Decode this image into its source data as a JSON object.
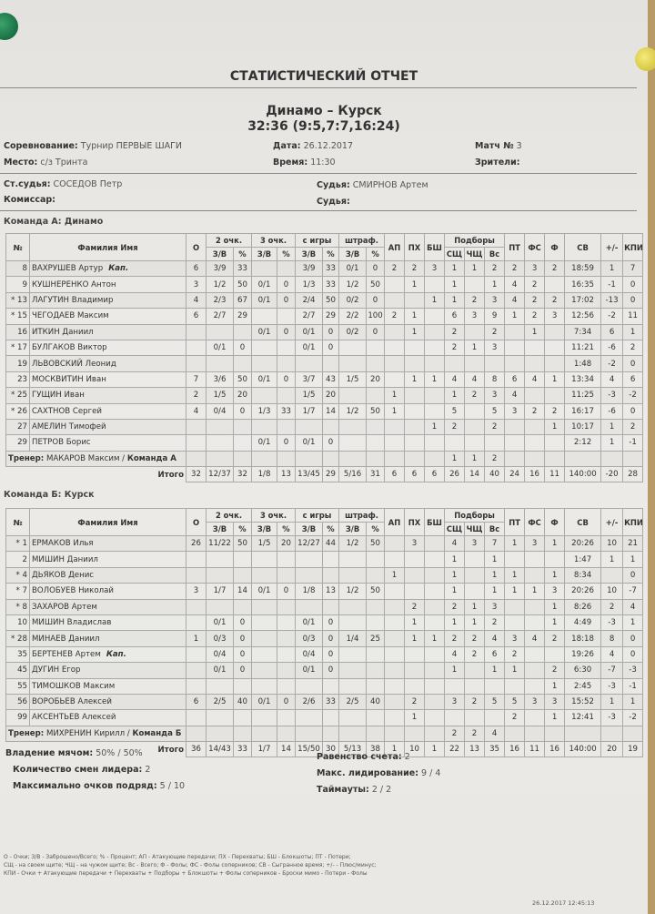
{
  "title": "СТАТИСТИЧЕСКИЙ ОТЧЕТ",
  "match": {
    "teams": "Динамо  – Курск",
    "score": "32:36 (9:5,7:7,16:24)"
  },
  "meta": {
    "competition_label": "Соревнование:",
    "competition": "Турнир ПЕРВЫЕ ШАГИ",
    "date_label": "Дата:",
    "date": "26.12.2017",
    "match_no_label": "Матч №",
    "match_no": "3",
    "place_label": "Место:",
    "place": "с/з Тринта",
    "time_label": "Время:",
    "time": "11:30",
    "spectators_label": "Зрители:",
    "chief_ref_label": "Ст.судья:",
    "chief_ref": "СОСЕДОВ Петр",
    "ref1_label": "Судья:",
    "ref1": "СМИРНОВ Артем",
    "commissioner_label": "Комиссар:",
    "ref2_label": "Судья:"
  },
  "headers": {
    "num": "№",
    "name": "Фамилия Имя",
    "pts": "О",
    "two": "2 очк.",
    "three": "3 очк.",
    "field": "с игры",
    "ft": "штраф.",
    "zv": "З/В",
    "pct": "%",
    "ap": "АП",
    "ph": "ПХ",
    "bsh": "БШ",
    "reb": "Подборы",
    "ssh": "СЩ",
    "chsh": "ЧЩ",
    "vs": "Вс",
    "pt": "ПТ",
    "fs": "ФС",
    "f": "Ф",
    "sv": "СВ",
    "pm": "+/-",
    "kpi": "КПИ",
    "total": "Итого",
    "captain": "Кап.",
    "coach": "Тренер:"
  },
  "teams": [
    {
      "label": "Команда А: Динамо",
      "players": [
        {
          "num": "8",
          "name": "ВАХРУШЕВ Артур",
          "cap": true,
          "s": [
            "6",
            "3/9",
            "33",
            "",
            "",
            "3/9",
            "33",
            "0/1",
            "0",
            "2",
            "2",
            "3",
            "1",
            "1",
            "2",
            "2",
            "3",
            "2",
            "18:59",
            "1",
            "7"
          ]
        },
        {
          "num": "9",
          "name": "КУШНЕРЕНКО Антон",
          "s": [
            "3",
            "1/2",
            "50",
            "0/1",
            "0",
            "1/3",
            "33",
            "1/2",
            "50",
            "",
            "1",
            "",
            "1",
            "",
            "1",
            "4",
            "2",
            "",
            "16:35",
            "-1",
            "0"
          ]
        },
        {
          "num": "* 13",
          "name": "ЛАГУТИН Владимир",
          "s": [
            "4",
            "2/3",
            "67",
            "0/1",
            "0",
            "2/4",
            "50",
            "0/2",
            "0",
            "",
            "",
            "1",
            "1",
            "2",
            "3",
            "4",
            "2",
            "2",
            "17:02",
            "-13",
            "0"
          ]
        },
        {
          "num": "* 15",
          "name": "ЧЕГОДАЕВ Максим",
          "s": [
            "6",
            "2/7",
            "29",
            "",
            "",
            "2/7",
            "29",
            "2/2",
            "100",
            "2",
            "1",
            "",
            "6",
            "3",
            "9",
            "1",
            "2",
            "3",
            "12:56",
            "-2",
            "11"
          ]
        },
        {
          "num": "16",
          "name": "ИТКИН Даниил",
          "s": [
            "",
            "",
            "",
            "0/1",
            "0",
            "0/1",
            "0",
            "0/2",
            "0",
            "",
            "1",
            "",
            "2",
            "",
            "2",
            "",
            "1",
            "",
            "7:34",
            "6",
            "1"
          ]
        },
        {
          "num": "* 17",
          "name": "БУЛГАКОВ Виктор",
          "s": [
            "",
            "0/1",
            "0",
            "",
            "",
            "0/1",
            "0",
            "",
            "",
            "",
            "",
            "",
            "2",
            "1",
            "3",
            "",
            "",
            "",
            "11:21",
            "-6",
            "2"
          ]
        },
        {
          "num": "19",
          "name": "ЛЬВОВСКИЙ Леонид",
          "s": [
            "",
            "",
            "",
            "",
            "",
            "",
            "",
            "",
            "",
            "",
            "",
            "",
            "",
            "",
            "",
            "",
            "",
            "",
            "1:48",
            "-2",
            "0"
          ]
        },
        {
          "num": "23",
          "name": "МОСКВИТИН Иван",
          "s": [
            "7",
            "3/6",
            "50",
            "0/1",
            "0",
            "3/7",
            "43",
            "1/5",
            "20",
            "",
            "1",
            "1",
            "4",
            "4",
            "8",
            "6",
            "4",
            "1",
            "13:34",
            "4",
            "6"
          ]
        },
        {
          "num": "* 25",
          "name": "ГУЩИН Иван",
          "s": [
            "2",
            "1/5",
            "20",
            "",
            "",
            "1/5",
            "20",
            "",
            "",
            "1",
            "",
            "",
            "1",
            "2",
            "3",
            "4",
            "",
            "",
            "11:25",
            "-3",
            "-2"
          ]
        },
        {
          "num": "* 26",
          "name": "САХТНОВ Сергей",
          "s": [
            "4",
            "0/4",
            "0",
            "1/3",
            "33",
            "1/7",
            "14",
            "1/2",
            "50",
            "1",
            "",
            "",
            "5",
            "",
            "5",
            "3",
            "2",
            "2",
            "16:17",
            "-6",
            "0"
          ]
        },
        {
          "num": "27",
          "name": "АМЕЛИН Тимофей",
          "s": [
            "",
            "",
            "",
            "",
            "",
            "",
            "",
            "",
            "",
            "",
            "",
            "1",
            "2",
            "",
            "2",
            "",
            "",
            "1",
            "10:17",
            "1",
            "2"
          ]
        },
        {
          "num": "29",
          "name": "ПЕТРОВ Борис",
          "s": [
            "",
            "",
            "",
            "0/1",
            "0",
            "0/1",
            "0",
            "",
            "",
            "",
            "",
            "",
            "",
            "",
            "",
            "",
            "",
            "",
            "2:12",
            "1",
            "-1"
          ]
        }
      ],
      "coach": "МАКАРОВ Максим",
      "coach_team": "Команда А",
      "team_reb": [
        "1",
        "1",
        "2"
      ],
      "total": [
        "32",
        "12/37",
        "32",
        "1/8",
        "13",
        "13/45",
        "29",
        "5/16",
        "31",
        "6",
        "6",
        "6",
        "26",
        "14",
        "40",
        "24",
        "16",
        "11",
        "140:00",
        "-20",
        "28"
      ]
    },
    {
      "label": "Команда Б: Курск",
      "players": [
        {
          "num": "* 1",
          "name": "ЕРМАКОВ Илья",
          "s": [
            "26",
            "11/22",
            "50",
            "1/5",
            "20",
            "12/27",
            "44",
            "1/2",
            "50",
            "",
            "3",
            "",
            "4",
            "3",
            "7",
            "1",
            "3",
            "1",
            "20:26",
            "10",
            "21"
          ]
        },
        {
          "num": "2",
          "name": "МИШИН Даниил",
          "s": [
            "",
            "",
            "",
            "",
            "",
            "",
            "",
            "",
            "",
            "",
            "",
            "",
            "1",
            "",
            "1",
            "",
            "",
            "",
            "1:47",
            "1",
            "1"
          ]
        },
        {
          "num": "* 4",
          "name": "ДЬЯКОВ Денис",
          "s": [
            "",
            "",
            "",
            "",
            "",
            "",
            "",
            "",
            "",
            "1",
            "",
            "",
            "1",
            "",
            "1",
            "1",
            "",
            "1",
            "8:34",
            "",
            "0"
          ]
        },
        {
          "num": "* 7",
          "name": "ВОЛОБУЕВ Николай",
          "s": [
            "3",
            "1/7",
            "14",
            "0/1",
            "0",
            "1/8",
            "13",
            "1/2",
            "50",
            "",
            "",
            "",
            "1",
            "",
            "1",
            "1",
            "1",
            "3",
            "20:26",
            "10",
            "-7"
          ]
        },
        {
          "num": "* 8",
          "name": "ЗАХАРОВ Артем",
          "s": [
            "",
            "",
            "",
            "",
            "",
            "",
            "",
            "",
            "",
            "",
            "2",
            "",
            "2",
            "1",
            "3",
            "",
            "",
            "1",
            "8:26",
            "2",
            "4"
          ]
        },
        {
          "num": "10",
          "name": "МИШИН Владислав",
          "s": [
            "",
            "0/1",
            "0",
            "",
            "",
            "0/1",
            "0",
            "",
            "",
            "",
            "1",
            "",
            "1",
            "1",
            "2",
            "",
            "",
            "1",
            "4:49",
            "-3",
            "1"
          ]
        },
        {
          "num": "* 28",
          "name": "МИНАЕВ Даниил",
          "s": [
            "1",
            "0/3",
            "0",
            "",
            "",
            "0/3",
            "0",
            "1/4",
            "25",
            "",
            "1",
            "1",
            "2",
            "2",
            "4",
            "3",
            "4",
            "2",
            "18:18",
            "8",
            "0"
          ]
        },
        {
          "num": "35",
          "name": "БЕРТЕНЕВ Артем",
          "cap": true,
          "s": [
            "",
            "0/4",
            "0",
            "",
            "",
            "0/4",
            "0",
            "",
            "",
            "",
            "",
            "",
            "4",
            "2",
            "6",
            "2",
            "",
            "",
            "19:26",
            "4",
            "0"
          ]
        },
        {
          "num": "45",
          "name": "ДУГИН Егор",
          "s": [
            "",
            "0/1",
            "0",
            "",
            "",
            "0/1",
            "0",
            "",
            "",
            "",
            "",
            "",
            "1",
            "",
            "1",
            "1",
            "",
            "2",
            "6:30",
            "-7",
            "-3"
          ]
        },
        {
          "num": "55",
          "name": "ТИМОШКОВ Максим",
          "s": [
            "",
            "",
            "",
            "",
            "",
            "",
            "",
            "",
            "",
            "",
            "",
            "",
            "",
            "",
            "",
            "",
            "",
            "1",
            "2:45",
            "-3",
            "-1"
          ]
        },
        {
          "num": "56",
          "name": "ВОРОБЬЕВ Алексей",
          "s": [
            "6",
            "2/5",
            "40",
            "0/1",
            "0",
            "2/6",
            "33",
            "2/5",
            "40",
            "",
            "2",
            "",
            "3",
            "2",
            "5",
            "5",
            "3",
            "3",
            "15:52",
            "1",
            "1"
          ]
        },
        {
          "num": "99",
          "name": "АКСЕНТЬЕВ Алексей",
          "s": [
            "",
            "",
            "",
            "",
            "",
            "",
            "",
            "",
            "",
            "",
            "1",
            "",
            "",
            "",
            "",
            "2",
            "",
            "1",
            "12:41",
            "-3",
            "-2"
          ]
        }
      ],
      "coach": "МИХРЕНИН Кирилл",
      "coach_team": "Команда Б",
      "team_reb": [
        "2",
        "2",
        "4"
      ],
      "total": [
        "36",
        "14/43",
        "33",
        "1/7",
        "14",
        "15/50",
        "30",
        "5/13",
        "38",
        "1",
        "10",
        "1",
        "22",
        "13",
        "35",
        "16",
        "11",
        "16",
        "140:00",
        "20",
        "19"
      ]
    }
  ],
  "summary": {
    "possession_label": "Владение мячом:",
    "possession": "50% / 50%",
    "lead_changes_label": "Количество смен лидера:",
    "lead_changes": "2",
    "max_run_label": "Максимально очков подряд:",
    "max_run": "5 / 10",
    "ties_label": "Равенство счета:",
    "ties": "2",
    "max_lead_label": "Макс. лидирование:",
    "max_lead": "9 / 4",
    "timeouts_label": "Таймауты:",
    "timeouts": "2 / 2"
  },
  "legend": [
    "О - Очки; З/В - Заброшено/Всего; % - Процент; АП - Атакующие передачи; ПХ - Перехваты; БШ - Блокшоты; ПТ - Потери;",
    "СЩ - на своем щите; ЧЩ - на чужом щите; Вс - Всего; Ф - Фолы; ФС - Фолы соперников; СВ - Сыгранное время; +/- - Плюс/минус;",
    "КПИ - Очки + Атакующие передачи + Перехваты + Подборы + Блокшоты + Фолы соперников - Броски мимо - Потери - Фолы"
  ],
  "printed_at": "26.12.2017  12:45:13"
}
